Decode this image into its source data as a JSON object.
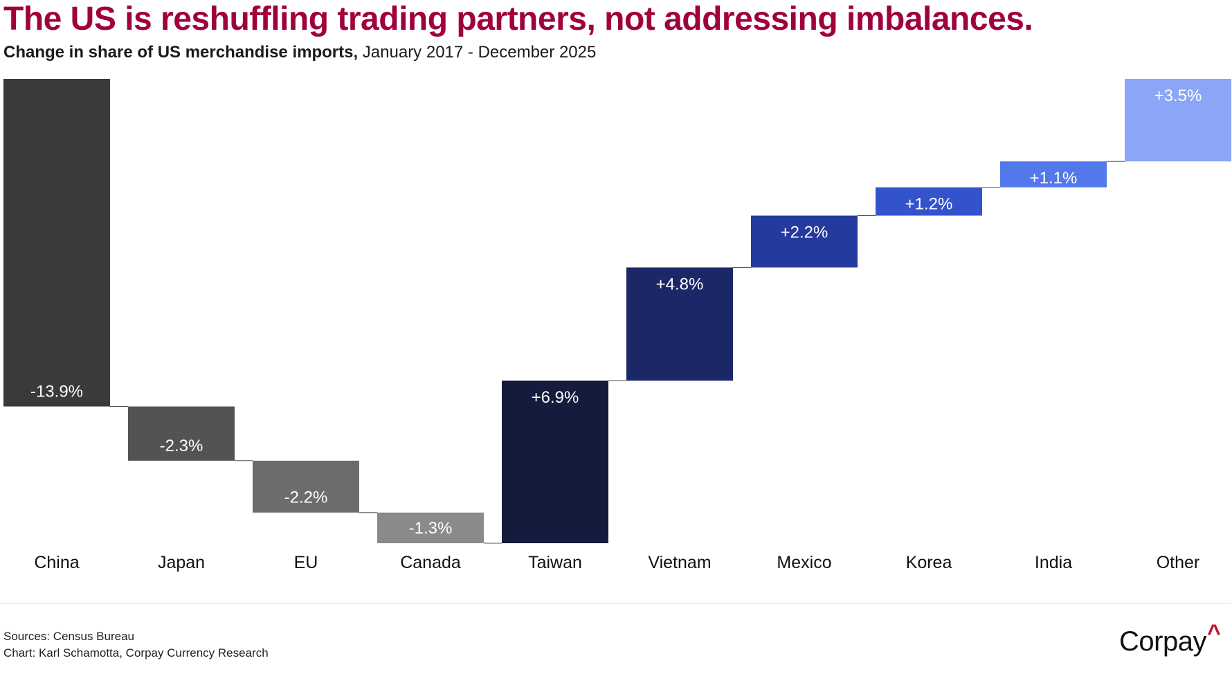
{
  "title": "The US is reshuffling trading partners, not addressing imbalances.",
  "subtitle_bold": "Change in share of US merchandise imports,",
  "subtitle_rest": "January 2017 - December 2025",
  "chart_data": {
    "type": "waterfall",
    "title": "The US is reshuffling trading partners, not addressing imbalances.",
    "subtitle": "Change in share of US merchandise imports, January 2017 - December 2025",
    "xlabel": "",
    "ylabel": "",
    "unit": "percentage points",
    "categories": [
      "China",
      "Japan",
      "EU",
      "Canada",
      "Taiwan",
      "Vietnam",
      "Mexico",
      "Korea",
      "India",
      "Other"
    ],
    "values": [
      -13.9,
      -2.3,
      -2.2,
      -1.3,
      6.9,
      4.8,
      2.2,
      1.2,
      1.1,
      3.5
    ],
    "labels": [
      "-13.9%",
      "-2.3%",
      "-2.2%",
      "-1.3%",
      "+6.9%",
      "+4.8%",
      "+2.2%",
      "+1.2%",
      "+1.1%",
      "+3.5%"
    ],
    "colors": [
      "#3a3a3a",
      "#535353",
      "#6c6c6c",
      "#8a8a8a",
      "#141b3c",
      "#1c2767",
      "#243a9c",
      "#3353cc",
      "#5278ec",
      "#8ba6f7"
    ],
    "connector_color": "#555555",
    "label_color": "#ffffff",
    "grid": false
  },
  "footer": {
    "sources": "Sources: Census Bureau",
    "credit": "Chart: Karl Schamotta, Corpay Currency Research"
  },
  "logo": {
    "text": "Corpay",
    "mark": "^",
    "mark_color": "#c8102e"
  }
}
